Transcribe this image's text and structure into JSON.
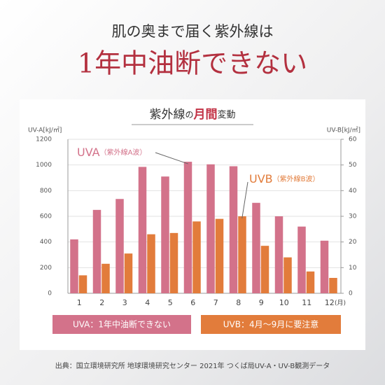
{
  "header": {
    "subtitle": "肌の奥まで届く紫外線は",
    "title": "1年中油断できない"
  },
  "chart_data": {
    "type": "bar",
    "title_parts": [
      "紫外線",
      "の",
      "月間",
      "変動"
    ],
    "y_label": "UV-A[kJ/㎡]",
    "y2_label": "UV-B[kJ/㎡]",
    "x_unit": "(月)",
    "categories": [
      "1",
      "2",
      "3",
      "4",
      "5",
      "6",
      "7",
      "8",
      "9",
      "10",
      "11",
      "12"
    ],
    "series": [
      {
        "name": "UVA",
        "note": "（紫外線A波）",
        "color": "#d3728a",
        "values": [
          420,
          650,
          735,
          985,
          910,
          1025,
          1005,
          990,
          705,
          600,
          520,
          410
        ]
      },
      {
        "name": "UVB",
        "note": "（紫外線B波）",
        "color": "#e27c3b",
        "axis": "y2",
        "values": [
          7,
          11.5,
          15.5,
          23,
          23.5,
          28,
          29,
          30,
          18.5,
          14,
          8.5,
          6
        ]
      }
    ],
    "ylim": [
      0,
      1200
    ],
    "yticks": [
      0,
      200,
      400,
      600,
      800,
      1000,
      1200
    ],
    "y2lim": [
      0,
      60
    ],
    "y2ticks": [
      0,
      10,
      20,
      30,
      40,
      50,
      60
    ],
    "grid": true
  },
  "badges": [
    "UVA：1年中油断できない",
    "UVB：4月～9月に要注意"
  ],
  "source": "出典：国立環境研究所 地球環境研究センター 2021年 つくば局UV-A・UV-B観測データ"
}
